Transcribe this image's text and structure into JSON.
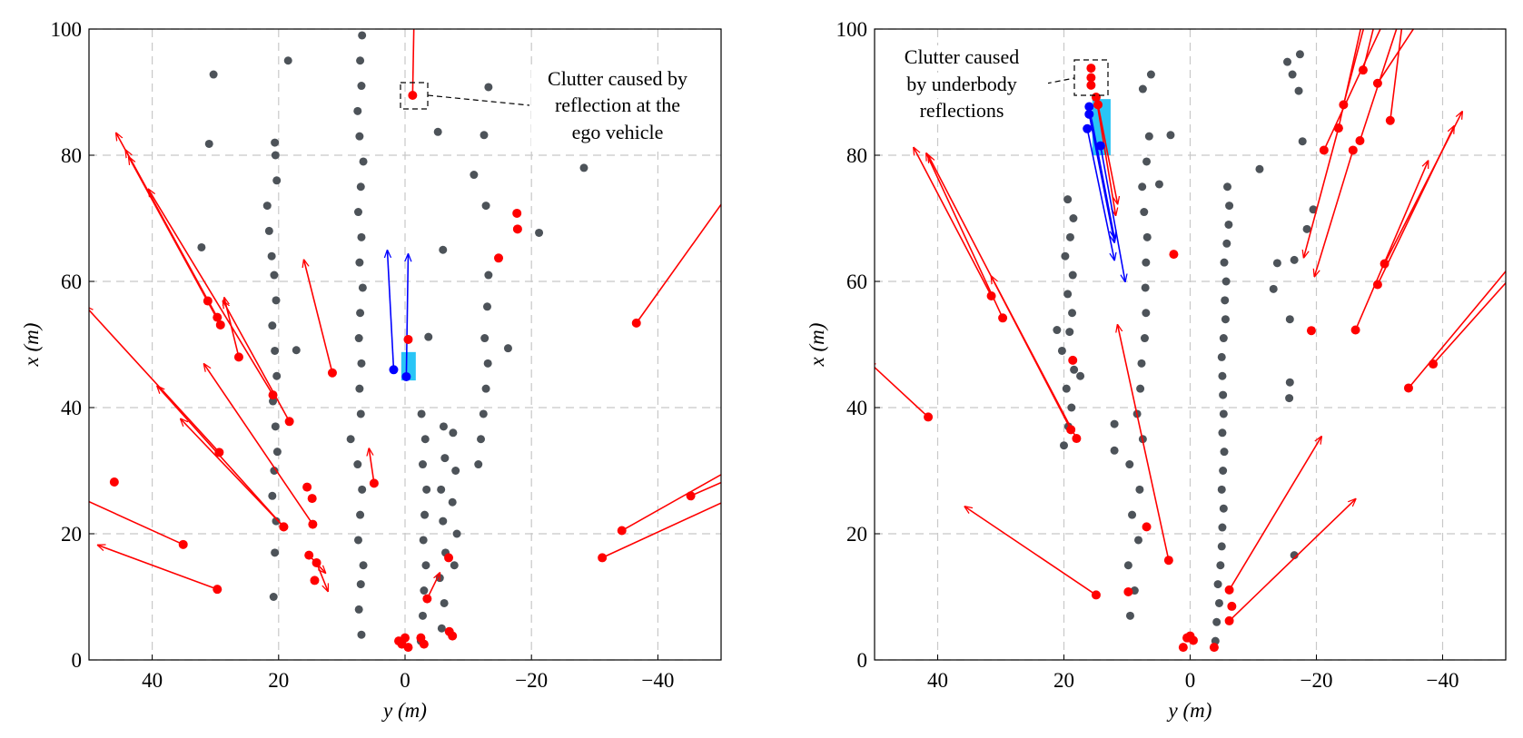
{
  "chart_data": [
    {
      "type": "scatter",
      "xlabel": "y (m)",
      "ylabel": "x (m)",
      "xlim": [
        50,
        -50
      ],
      "ylim": [
        0,
        100
      ],
      "xticks": [
        40,
        20,
        0,
        {
          "value": -20,
          "label": "−20"
        },
        {
          "value": -40,
          "label": "−40"
        }
      ],
      "yticks": [
        0,
        20,
        40,
        60,
        80,
        100
      ],
      "grid": true,
      "annotation": [
        "Clutter caused by",
        "reflection at the",
        "ego vehicle"
      ],
      "static": {
        "color": "#4d5359",
        "x": [
          6.9,
          7.3,
          7.0,
          6.6,
          7.4,
          7.1,
          6.8,
          7.5,
          8.6,
          7.0,
          7.2,
          6.9,
          7.3,
          7.1,
          6.7,
          7.2,
          6.9,
          7.4,
          7.0,
          6.6,
          7.2,
          7.5,
          6.9,
          7.1,
          6.8,
          20.8,
          20.6,
          20.4,
          21,
          20.7,
          20.2,
          20.5,
          20.9,
          20.3,
          20.6,
          21,
          20.4,
          20.7,
          21.1,
          21.5,
          21.8,
          20.3,
          20.5,
          20.6,
          -2.5,
          -2.8,
          -3,
          -3.3,
          -2.9,
          -3.1,
          -3.4,
          -2.8,
          -3.2,
          -2.6,
          -5.8,
          -6.2,
          -5.5,
          -6.4,
          -6,
          -5.7,
          -6.3,
          -6.1,
          -7.8,
          -8.2,
          -7.5,
          -8,
          -7.6,
          -11.6,
          -12,
          -12.4,
          -12.8,
          -13.1,
          -12.6,
          -13,
          -13.2,
          30.3,
          31,
          32.2,
          18.5,
          -28.3,
          -21.2,
          -6,
          -5.2,
          -13.2,
          -10.9,
          -12.5,
          -16.3,
          17.2,
          -3.7,
          -12.8
        ],
        "y": [
          4,
          8,
          12,
          15,
          19,
          23,
          27,
          31,
          35,
          39,
          43,
          47,
          51,
          55,
          59,
          63,
          67,
          71,
          75,
          79,
          83,
          87,
          91,
          95,
          99,
          10,
          17,
          22,
          26,
          30,
          33,
          37,
          41,
          45,
          49,
          53,
          57,
          61,
          64,
          68,
          72,
          76,
          80,
          82,
          3,
          7,
          11,
          15,
          19,
          23,
          27,
          31,
          35,
          39,
          5,
          9,
          13,
          17,
          22,
          27,
          32,
          37,
          15,
          20,
          25,
          30,
          36,
          31,
          35,
          39,
          43,
          47,
          51,
          56,
          61,
          92.8,
          81.8,
          65.4,
          95,
          78,
          67.7,
          65,
          83.7,
          90.8,
          76.9,
          83.2,
          49.4,
          49.1,
          51.2,
          72
        ]
      },
      "moving": {
        "color": "#ff0000",
        "x": [
          -1.2,
          -36.6,
          -17.7,
          -17.8,
          -14.8,
          -0.5,
          31.2,
          29.7,
          29.2,
          26.3,
          20.9,
          18.3,
          11.5,
          29.4,
          29.7,
          35.1,
          46,
          19.2,
          19.2,
          14.6,
          15.2,
          14,
          14.3,
          15.5,
          14.7,
          4.9,
          -34.3,
          -45.2,
          -31.2,
          0.5,
          1,
          -0.5,
          0,
          -2.5,
          -3,
          -7,
          -7.5,
          -3.5,
          -6.9
        ],
        "y": [
          89.5,
          53.4,
          70.8,
          68.3,
          63.7,
          50.8,
          56.9,
          54.3,
          53.1,
          48,
          42,
          37.8,
          45.5,
          32.9,
          11.2,
          18.3,
          28.2,
          21.1,
          21.1,
          21.5,
          16.6,
          15.4,
          12.6,
          27.4,
          25.6,
          28,
          20.5,
          26,
          16.2,
          2.5,
          3,
          2,
          3.5,
          3.5,
          2.5,
          4.5,
          3.8,
          9.7,
          16.2
        ],
        "x_end": [
          -1.5,
          -52,
          null,
          null,
          null,
          null,
          45.7,
          44.2,
          43.7,
          28.6,
          40.6,
          28.8,
          16,
          50.5,
          48.6,
          52,
          null,
          35.5,
          39.2,
          31.8,
          12.6,
          12.2,
          null,
          null,
          null,
          5.7,
          -52,
          -52,
          -52,
          null,
          null,
          null,
          null,
          null,
          null,
          null,
          null,
          -5.5,
          null
        ],
        "y_end": [
          106,
          75,
          null,
          null,
          null,
          null,
          83.5,
          80.8,
          79.7,
          57.4,
          74.6,
          56.9,
          63.4,
          56,
          18.2,
          26,
          null,
          38.2,
          43.4,
          46.9,
          13.8,
          10.9,
          null,
          null,
          null,
          33.5,
          30.5,
          29,
          25.8,
          null,
          null,
          null,
          null,
          null,
          null,
          null,
          null,
          13.8,
          null
        ]
      },
      "ego": {
        "color": "#0000ff",
        "x": [
          1.8,
          -0.2
        ],
        "y": [
          46,
          44.9
        ],
        "x_end": [
          2.8,
          -0.5
        ],
        "y_end": [
          64.9,
          64.3
        ]
      },
      "ego_box": {
        "color": "#29c5f6",
        "x": [
          0.6,
          -1.7
        ],
        "y": [
          44.3,
          48.8
        ]
      }
    },
    {
      "type": "scatter",
      "xlabel": "y (m)",
      "ylabel": "x (m)",
      "xlim": [
        50,
        -50
      ],
      "ylim": [
        0,
        100
      ],
      "xticks": [
        40,
        20,
        0,
        {
          "value": -20,
          "label": "−20"
        },
        {
          "value": -40,
          "label": "−40"
        }
      ],
      "yticks": [
        0,
        20,
        40,
        60,
        80,
        100
      ],
      "grid": true,
      "annotation": [
        "Clutter caused",
        "by underbody",
        "reflections"
      ],
      "static": {
        "color": "#4d5359",
        "x": [
          20,
          19.3,
          18.8,
          19.6,
          18.4,
          20.3,
          19.1,
          18.7,
          19.4,
          18.6,
          19.8,
          19,
          18.5,
          19.4,
          9.5,
          8.8,
          9.8,
          8.2,
          9.2,
          8,
          9.6,
          7.5,
          8.4,
          7.9,
          7.7,
          7.2,
          7,
          7.1,
          7,
          6.8,
          7.3,
          7.6,
          6.9,
          6.5,
          -4,
          -4.2,
          -4.6,
          -4.4,
          -4.8,
          -5,
          -5.1,
          -5.3,
          -5,
          -5.2,
          -5.4,
          -5.1,
          -5.3,
          -5.2,
          -5.1,
          -5,
          -5.3,
          -5.6,
          -5.5,
          -5.7,
          -5.4,
          -5.8,
          -6.1,
          -6.2,
          -5.9,
          6.2,
          7.5,
          4.9,
          3.1,
          -15.4,
          -17.4,
          -16.2,
          -17.2,
          -17.8,
          -11,
          -13.8,
          -13.2,
          -15.8,
          -19.5,
          -16.5,
          -18.5,
          -15.7,
          -15.8,
          -16.5,
          12,
          12,
          21.1,
          17.4
        ],
        "y": [
          34,
          37,
          40,
          43,
          46,
          49,
          52,
          55,
          58,
          61,
          64,
          67,
          70,
          73,
          7,
          11,
          15,
          19,
          23,
          27,
          31,
          35,
          39,
          43,
          47,
          51,
          55,
          59,
          63,
          67,
          71,
          75,
          79,
          83,
          3,
          6,
          9,
          12,
          15,
          18,
          21,
          24,
          27,
          30,
          33,
          36,
          39,
          42,
          45,
          48,
          51,
          54,
          57,
          60,
          63,
          66,
          69,
          72,
          75,
          92.8,
          90.5,
          75.4,
          83.2,
          94.8,
          96,
          92.8,
          90.2,
          82.2,
          77.8,
          62.9,
          58.8,
          54,
          71.4,
          63.4,
          68.3,
          41.5,
          44,
          16.6,
          37.4,
          33.2,
          52.3,
          45
        ]
      },
      "moving": {
        "color": "#ff0000",
        "x": [
          15.7,
          15.7,
          15.7,
          14.9,
          14.6,
          31.5,
          29.7,
          18,
          18.9,
          18.6,
          41.5,
          14.9,
          3.4,
          6.9,
          2.6,
          9.8,
          -6.2,
          -6.2,
          -6.6,
          0.5,
          1.1,
          -0.5,
          -3.8,
          0,
          -19.2,
          -26.2,
          -29.7,
          -30.8,
          -34.6,
          -38.5,
          -24.3,
          -23.5,
          -21.2,
          -26.9,
          -27.4,
          -29.7,
          -31.7,
          -23.5,
          -25.8
        ],
        "y": [
          93.8,
          92.3,
          91.1,
          89.2,
          88,
          57.7,
          54.2,
          35.1,
          36.5,
          47.5,
          38.5,
          10.3,
          15.8,
          21.1,
          64.3,
          10.8,
          11.1,
          6.2,
          8.5,
          3.5,
          2,
          3.1,
          2,
          3.8,
          52.2,
          52.3,
          59.5,
          62.8,
          43.1,
          46.9,
          88,
          84.3,
          80.8,
          82.3,
          93.5,
          91.4,
          85.5,
          84.3,
          80.8
        ],
        "x_end": [
          null,
          null,
          null,
          11.8,
          11.5,
          43.8,
          41.8,
          31.5,
          41.5,
          null,
          51,
          35.7,
          11.5,
          null,
          null,
          null,
          -20.8,
          -26.2,
          null,
          null,
          null,
          null,
          null,
          null,
          null,
          -37.7,
          -41.8,
          -43.1,
          -52,
          -52,
          -28.5,
          -27.9,
          -32,
          -34,
          -30,
          -38,
          -34,
          -18,
          -19.7
        ],
        "y_end": [
          null,
          null,
          null,
          70.5,
          72.3,
          81.2,
          80.3,
          60.8,
          80,
          null,
          47.3,
          24.3,
          53.1,
          null,
          null,
          null,
          35.4,
          25.5,
          null,
          null,
          null,
          null,
          null,
          null,
          null,
          79.1,
          84.6,
          86.9,
          64,
          62,
          104,
          104,
          104,
          104,
          104,
          104,
          104,
          63.8,
          60.8
        ]
      },
      "ego": {
        "color": "#0000ff",
        "x": [
          16,
          16,
          16.3,
          14.2
        ],
        "y": [
          87.7,
          86.5,
          84.2,
          81.5
        ],
        "x_end": [
          12,
          12,
          12,
          10.3
        ],
        "y_end": [
          66.9,
          66.2,
          63.4,
          60
        ]
      },
      "ego_box": {
        "color": "#29c5f6",
        "x": [
          15.5,
          12.6
        ],
        "y": [
          80,
          88.9
        ]
      }
    }
  ]
}
